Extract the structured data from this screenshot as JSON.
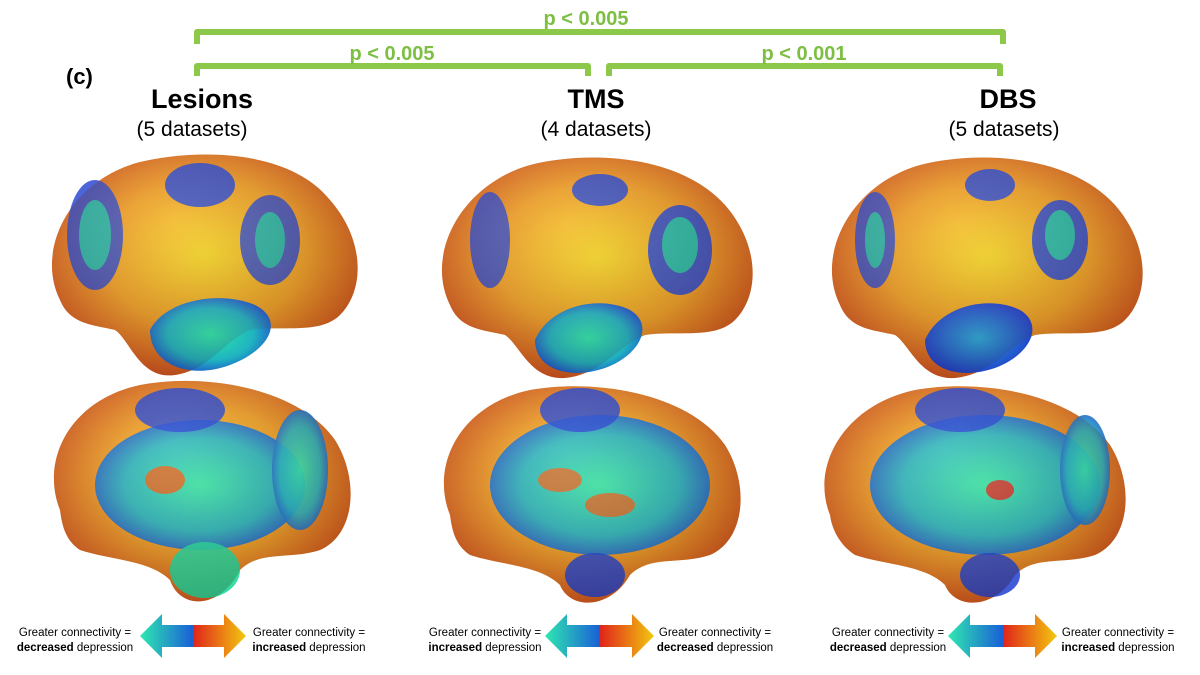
{
  "panel_label": "(c)",
  "columns": [
    {
      "title": "Lesions",
      "subtitle": "(5 datasets)",
      "legend_left": {
        "line1": "Greater connectivity =",
        "bold": "decreased",
        "rest": " depression"
      },
      "legend_right": {
        "line1": "Greater connectivity =",
        "bold": "increased",
        "rest": " depression"
      }
    },
    {
      "title": "TMS",
      "subtitle": "(4 datasets)",
      "legend_left": {
        "line1": "Greater connectivity =",
        "bold": "increased",
        "rest": " depression"
      },
      "legend_right": {
        "line1": "Greater connectivity =",
        "bold": "decreased",
        "rest": " depression"
      }
    },
    {
      "title": "DBS",
      "subtitle": "(5 datasets)",
      "legend_left": {
        "line1": "Greater connectivity =",
        "bold": "decreased",
        "rest": " depression"
      },
      "legend_right": {
        "line1": "Greater connectivity =",
        "bold": "increased",
        "rest": " depression"
      }
    }
  ],
  "comparisons": [
    {
      "label": "p < 0.005",
      "between": [
        "Lesions",
        "DBS"
      ]
    },
    {
      "label": "p < 0.005",
      "between": [
        "Lesions",
        "TMS"
      ]
    },
    {
      "label": "p < 0.001",
      "between": [
        "TMS",
        "DBS"
      ]
    }
  ],
  "colors": {
    "bracket": "#8cc94a",
    "pvalue_text": "#7dbf43",
    "cool_light": "#2ee8b0",
    "cool_dark": "#1a5fd6",
    "warm_dark": "#e0241b",
    "warm_light": "#f2c80f",
    "brain_orange": "#e9821f",
    "brain_yellow": "#f4d21a",
    "brain_blue": "#1f3fd0",
    "brain_teal": "#22c79a"
  }
}
